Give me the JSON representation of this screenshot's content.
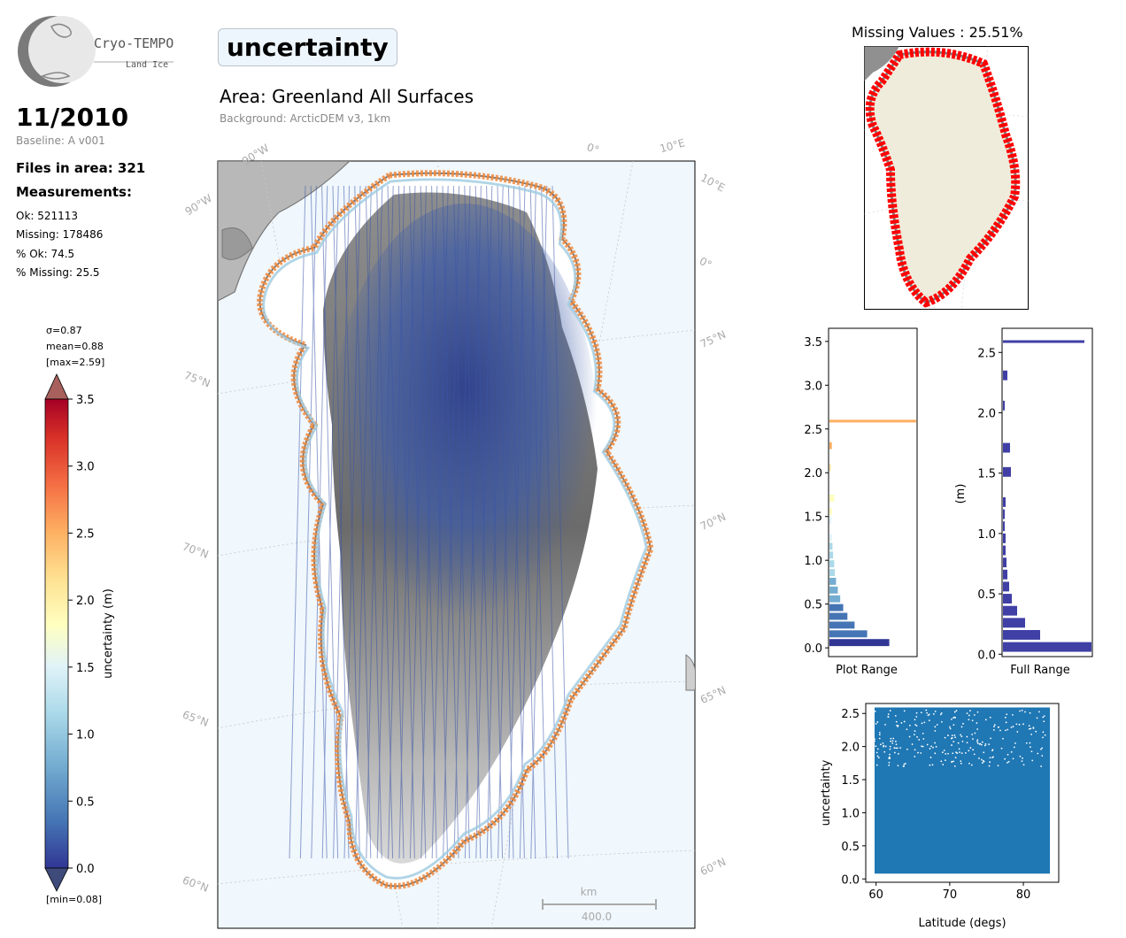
{
  "logo": {
    "name": "Cryo-TEMPO",
    "subtitle": "Land Ice"
  },
  "header": {
    "date": "11/2010",
    "baseline": "Baseline: A v001",
    "files": "Files in area: 321",
    "measurements_label": "Measurements:",
    "stats": [
      "Ok: 521113",
      "Missing: 178486",
      "% Ok: 74.5",
      "% Missing: 25.5"
    ],
    "parameter": "uncertainty",
    "area": "Area: Greenland All Surfaces",
    "background": "Background: ArcticDEM v3, 1km"
  },
  "colorbar": {
    "sigma": "σ=0.87",
    "mean": "mean=0.88",
    "max": "[max=2.59]",
    "min": "[min=0.08]",
    "label": "uncertainty (m)",
    "ticks": [
      "0.0",
      "0.5",
      "1.0",
      "1.5",
      "2.0",
      "2.5",
      "3.0",
      "3.5"
    ],
    "vmin": 0,
    "vmax": 3.5
  },
  "map": {
    "lon_labels": [
      "90°W",
      "90°W",
      "0°",
      "10°E",
      "10°E",
      "0°"
    ],
    "lat_labels_left": [
      "75°N",
      "70°N",
      "65°N",
      "60°N"
    ],
    "lat_labels_right": [
      "75°N",
      "70°N",
      "65°N",
      "60°N"
    ],
    "scalebar_unit": "km",
    "scalebar_value": "400.0"
  },
  "missing_map": {
    "title": "Missing Values : 25.51%",
    "colors": {
      "land": "#efecdc",
      "missing": "#ff0000",
      "coast": "#808080"
    }
  },
  "chart_data": [
    {
      "type": "bar",
      "orientation": "horizontal",
      "title": "",
      "xlabel": "Plot Range",
      "ylabel": "",
      "ylim": [
        -0.1,
        3.65
      ],
      "yticks": [
        "0.0",
        "0.5",
        "1.0",
        "1.5",
        "2.0",
        "2.5",
        "3.0",
        "3.5"
      ],
      "bins": [
        0.1,
        0.2,
        0.3,
        0.4,
        0.5,
        0.6,
        0.7,
        0.8,
        0.9,
        1.0,
        1.1,
        1.2,
        1.3,
        1.5,
        1.6,
        1.75,
        2.1,
        2.35,
        2.59
      ],
      "values": [
        1.0,
        0.63,
        0.42,
        0.3,
        0.23,
        0.18,
        0.14,
        0.11,
        0.09,
        0.08,
        0.06,
        0.05,
        0.04,
        0.03,
        0.04,
        0.08,
        0.02,
        0.04,
        1.45
      ]
    },
    {
      "type": "bar",
      "orientation": "horizontal",
      "title": "",
      "xlabel": "Full Range",
      "ylabel": "(m)",
      "ylim": [
        -0.02,
        2.7
      ],
      "yticks": [
        "0.0",
        "0.5",
        "1.0",
        "1.5",
        "2.0",
        "2.5"
      ],
      "bins": [
        0.1,
        0.2,
        0.3,
        0.4,
        0.5,
        0.6,
        0.7,
        0.8,
        0.9,
        1.0,
        1.1,
        1.2,
        1.3,
        1.55,
        1.75,
        2.1,
        2.35,
        2.59
      ],
      "values": [
        1.0,
        0.42,
        0.25,
        0.16,
        0.1,
        0.07,
        0.05,
        0.04,
        0.03,
        0.03,
        0.02,
        0.02,
        0.03,
        0.09,
        0.08,
        0.02,
        0.05,
        0.92
      ]
    },
    {
      "type": "scatter",
      "title": "",
      "xlabel": "Latitude (degs)",
      "ylabel": "uncertainty",
      "xlim": [
        58.6,
        84.8
      ],
      "ylim": [
        -0.05,
        2.65
      ],
      "xticks": [
        "60",
        "70",
        "80"
      ],
      "yticks": [
        "0.0",
        "0.5",
        "1.0",
        "1.5",
        "2.0",
        "2.5"
      ],
      "x_range": [
        59.8,
        83.6
      ],
      "y_range": [
        0.08,
        2.59
      ],
      "color": "#1f77b4"
    }
  ]
}
